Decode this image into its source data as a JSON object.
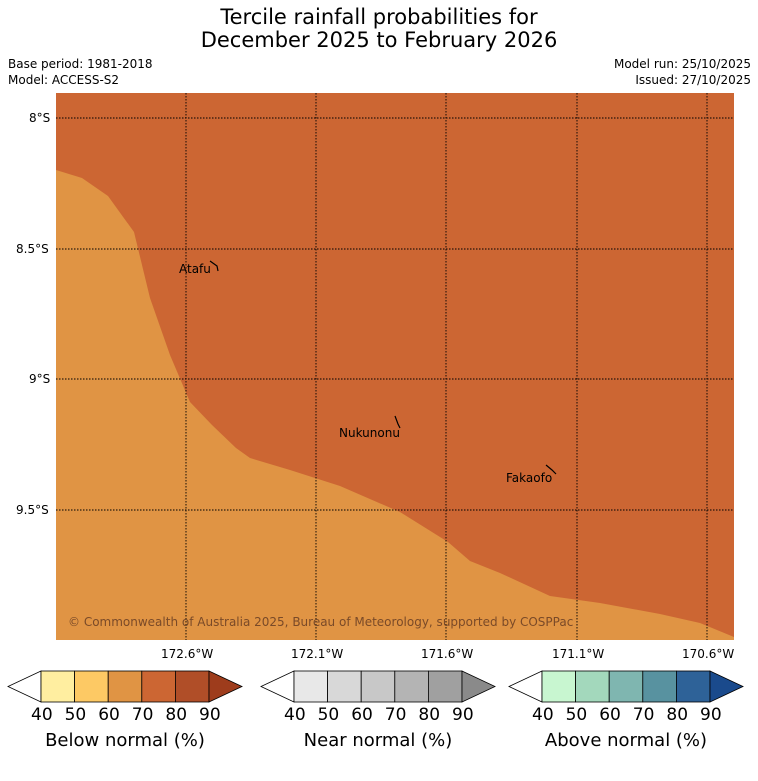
{
  "header": {
    "title_line1": "Tercile rainfall probabilities for",
    "title_line2": "December 2025 to February 2026",
    "base_period": "Base period: 1981-2018",
    "model": "Model: ACCESS-S2",
    "model_run": "Model run: 25/10/2025",
    "issued": "Issued: 27/10/2025"
  },
  "map": {
    "background_color": "#cc6633",
    "lower_region_color": "#e09444",
    "lat_labels": [
      "8°S",
      "8.5°S",
      "9°S",
      "9.5°S"
    ],
    "lon_labels": [
      "172.6°W",
      "172.1°W",
      "171.6°W",
      "171.1°W",
      "170.6°W"
    ],
    "places": [
      {
        "name": "Atafu"
      },
      {
        "name": "Nukunonu"
      },
      {
        "name": "Fakaofo"
      }
    ],
    "copyright": "© Commonwealth of Australia 2025, Bureau of Meteorology, supported by COSPPac"
  },
  "colorbars": [
    {
      "title": "Below normal (%)",
      "ticks": [
        "40",
        "50",
        "60",
        "70",
        "80",
        "90"
      ],
      "colors": [
        "#ffffff",
        "#ffeea0",
        "#fdc964",
        "#e09444",
        "#cc6633",
        "#b04e28",
        "#9e3c1c"
      ]
    },
    {
      "title": "Near normal (%)",
      "ticks": [
        "40",
        "50",
        "60",
        "70",
        "80",
        "90"
      ],
      "colors": [
        "#ffffff",
        "#e8e8e8",
        "#d8d8d8",
        "#c8c8c8",
        "#b4b4b4",
        "#a0a0a0",
        "#8a8a8a"
      ]
    },
    {
      "title": "Above normal (%)",
      "ticks": [
        "40",
        "50",
        "60",
        "70",
        "80",
        "90"
      ],
      "colors": [
        "#ffffff",
        "#c8f6d0",
        "#a3d8bc",
        "#7fb6b0",
        "#5892a0",
        "#2e6298",
        "#1a4a8c"
      ]
    }
  ]
}
